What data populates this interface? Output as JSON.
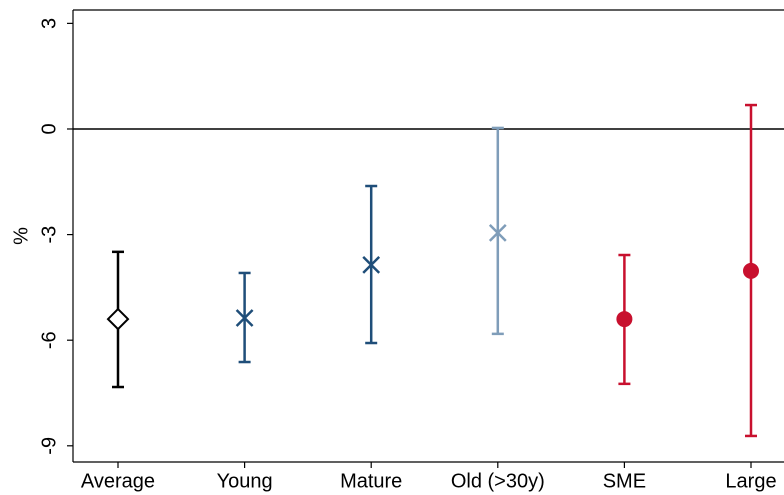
{
  "chart_data": {
    "type": "errorbar",
    "y_label": "%",
    "categories": [
      "Average",
      "Young",
      "Mature",
      "Old (>30y)",
      "SME",
      "Large"
    ],
    "values": [
      -5.4,
      -5.37,
      -3.86,
      -2.95,
      -5.4,
      -4.03
    ],
    "lower": [
      -7.33,
      -6.62,
      -6.08,
      -5.82,
      -7.24,
      -8.72
    ],
    "upper": [
      -3.49,
      -4.09,
      -1.62,
      0.03,
      -3.58,
      0.68
    ],
    "colors": [
      "#000000",
      "#1f4e79",
      "#1f4e79",
      "#7f9db9",
      "#c8102e",
      "#c8102e"
    ],
    "markers": [
      "diamond",
      "x",
      "x",
      "x",
      "circle",
      "circle"
    ],
    "reference_line": 0,
    "ylim": [
      -9.46,
      3.38
    ],
    "yticks": [
      -9,
      -6,
      -3,
      0,
      3
    ]
  }
}
